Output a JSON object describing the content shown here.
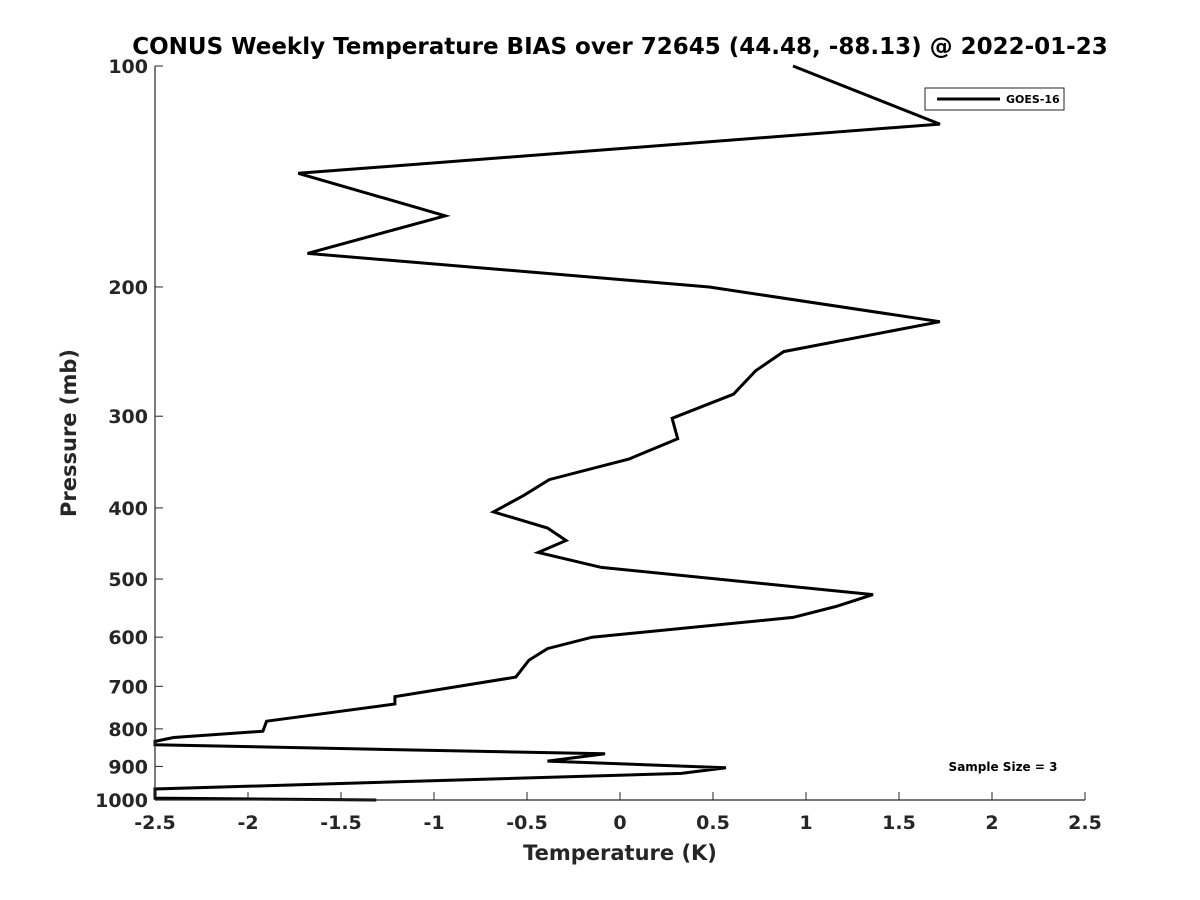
{
  "chart_data": {
    "type": "line",
    "title": "CONUS Weekly Temperature BIAS over 72645 (44.48, -88.13) @ 2022-01-23",
    "xlabel": "Temperature (K)",
    "ylabel": "Pressure (mb)",
    "xlim": [
      -2.5,
      2.5
    ],
    "ylim": [
      100,
      1000
    ],
    "y_scale": "log",
    "y_reversed": true,
    "x_ticks": [
      -2.5,
      -2,
      -1.5,
      -1,
      -0.5,
      0,
      0.5,
      1,
      1.5,
      2,
      2.5
    ],
    "x_tick_labels": [
      "-2.5",
      "-2",
      "-1.5",
      "-1",
      "-0.5",
      "0",
      "0.5",
      "1",
      "1.5",
      "2",
      "2.5"
    ],
    "y_ticks": [
      100,
      200,
      300,
      400,
      500,
      600,
      700,
      800,
      900,
      1000
    ],
    "y_tick_labels": [
      "100",
      "200",
      "300",
      "400",
      "500",
      "600",
      "700",
      "800",
      "900",
      "1000"
    ],
    "grid": false,
    "legend_position": "top-right",
    "color": "#000000",
    "series": [
      {
        "name": "GOES-16",
        "points": [
          {
            "x": 0.93,
            "y": 100
          },
          {
            "x": 1.72,
            "y": 120
          },
          {
            "x": -1.73,
            "y": 140
          },
          {
            "x": -0.94,
            "y": 160
          },
          {
            "x": -1.68,
            "y": 180
          },
          {
            "x": 0.48,
            "y": 200
          },
          {
            "x": 1.72,
            "y": 223
          },
          {
            "x": 0.88,
            "y": 245
          },
          {
            "x": 0.73,
            "y": 260
          },
          {
            "x": 0.61,
            "y": 280
          },
          {
            "x": 0.28,
            "y": 302
          },
          {
            "x": 0.31,
            "y": 322
          },
          {
            "x": 0.05,
            "y": 343
          },
          {
            "x": -0.38,
            "y": 366
          },
          {
            "x": -0.52,
            "y": 385
          },
          {
            "x": -0.68,
            "y": 405
          },
          {
            "x": -0.39,
            "y": 426
          },
          {
            "x": -0.29,
            "y": 443
          },
          {
            "x": -0.44,
            "y": 460
          },
          {
            "x": -0.1,
            "y": 482
          },
          {
            "x": 1.36,
            "y": 525
          },
          {
            "x": 1.16,
            "y": 545
          },
          {
            "x": 0.93,
            "y": 564
          },
          {
            "x": -0.15,
            "y": 600
          },
          {
            "x": -0.39,
            "y": 622
          },
          {
            "x": -0.49,
            "y": 645
          },
          {
            "x": -0.56,
            "y": 680
          },
          {
            "x": -1.21,
            "y": 723
          },
          {
            "x": -1.21,
            "y": 740
          },
          {
            "x": -1.9,
            "y": 781
          },
          {
            "x": -1.92,
            "y": 806
          },
          {
            "x": -2.4,
            "y": 822
          },
          {
            "x": -2.5,
            "y": 832
          },
          {
            "x": -2.5,
            "y": 841
          },
          {
            "x": -0.08,
            "y": 865
          },
          {
            "x": -0.39,
            "y": 885
          },
          {
            "x": 0.57,
            "y": 904
          },
          {
            "x": 0.33,
            "y": 920
          },
          {
            "x": -2.5,
            "y": 966
          },
          {
            "x": -2.5,
            "y": 994
          },
          {
            "x": -1.31,
            "y": 1000
          }
        ]
      }
    ],
    "annotations": [
      "Sample Size = 3"
    ]
  }
}
